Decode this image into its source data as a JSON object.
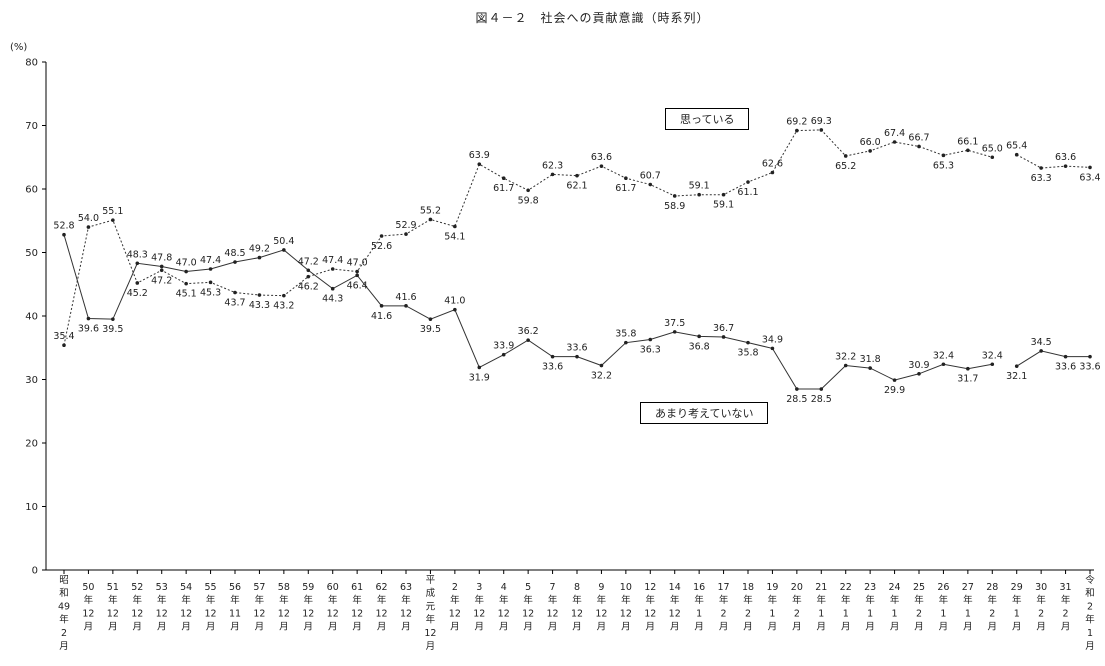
{
  "chart_data": {
    "type": "line",
    "title": "図４－２　社会への貢献意識（時系列）",
    "y_unit": "(%)",
    "ylim": [
      0,
      80
    ],
    "yticks": [
      0,
      10,
      20,
      30,
      40,
      50,
      60,
      70,
      80
    ],
    "grid": false,
    "categories": [
      [
        "昭",
        "和",
        "49",
        "年",
        "2",
        "月"
      ],
      [
        "50",
        "年",
        "12",
        "月"
      ],
      [
        "51",
        "年",
        "12",
        "月"
      ],
      [
        "52",
        "年",
        "12",
        "月"
      ],
      [
        "53",
        "年",
        "12",
        "月"
      ],
      [
        "54",
        "年",
        "12",
        "月"
      ],
      [
        "55",
        "年",
        "12",
        "月"
      ],
      [
        "56",
        "年",
        "11",
        "月"
      ],
      [
        "57",
        "年",
        "12",
        "月"
      ],
      [
        "58",
        "年",
        "12",
        "月"
      ],
      [
        "59",
        "年",
        "12",
        "月"
      ],
      [
        "60",
        "年",
        "12",
        "月"
      ],
      [
        "61",
        "年",
        "12",
        "月"
      ],
      [
        "62",
        "年",
        "12",
        "月"
      ],
      [
        "63",
        "年",
        "12",
        "月"
      ],
      [
        "平",
        "成",
        "元",
        "年",
        "12",
        "月"
      ],
      [
        "2",
        "年",
        "12",
        "月"
      ],
      [
        "3",
        "年",
        "12",
        "月"
      ],
      [
        "4",
        "年",
        "12",
        "月"
      ],
      [
        "5",
        "年",
        "12",
        "月"
      ],
      [
        "7",
        "年",
        "12",
        "月"
      ],
      [
        "8",
        "年",
        "12",
        "月"
      ],
      [
        "9",
        "年",
        "12",
        "月"
      ],
      [
        "10",
        "年",
        "12",
        "月"
      ],
      [
        "12",
        "年",
        "12",
        "月"
      ],
      [
        "14",
        "年",
        "12",
        "月"
      ],
      [
        "16",
        "年",
        "1",
        "月"
      ],
      [
        "17",
        "年",
        "2",
        "月"
      ],
      [
        "18",
        "年",
        "2",
        "月"
      ],
      [
        "19",
        "年",
        "1",
        "月"
      ],
      [
        "20",
        "年",
        "2",
        "月"
      ],
      [
        "21",
        "年",
        "1",
        "月"
      ],
      [
        "22",
        "年",
        "1",
        "月"
      ],
      [
        "23",
        "年",
        "1",
        "月"
      ],
      [
        "24",
        "年",
        "1",
        "月"
      ],
      [
        "25",
        "年",
        "2",
        "月"
      ],
      [
        "26",
        "年",
        "1",
        "月"
      ],
      [
        "27",
        "年",
        "1",
        "月"
      ],
      [
        "28",
        "年",
        "2",
        "月"
      ],
      [
        "29",
        "年",
        "1",
        "月"
      ],
      [
        "30",
        "年",
        "2",
        "月"
      ],
      [
        "31",
        "年",
        "2",
        "月"
      ],
      [
        "令",
        "和",
        "2",
        "年",
        "1",
        "月"
      ]
    ],
    "series": [
      {
        "name": "思っている",
        "style": "dotted",
        "values": [
          35.4,
          54.0,
          55.1,
          45.2,
          47.2,
          45.1,
          45.3,
          43.7,
          43.3,
          43.2,
          46.2,
          47.4,
          47.0,
          52.6,
          52.9,
          55.2,
          54.1,
          63.9,
          61.7,
          59.8,
          62.3,
          62.1,
          63.6,
          61.7,
          60.7,
          58.9,
          59.1,
          59.1,
          61.1,
          62.6,
          69.2,
          69.3,
          65.2,
          66.0,
          67.4,
          66.7,
          65.3,
          66.1,
          65.0,
          65.4,
          63.3,
          63.6,
          63.4
        ],
        "labels": [
          "35.4",
          "54.0",
          "55.1",
          "45.2",
          "47.2",
          "45.1",
          "45.3",
          "43.7",
          "43.3",
          "43.2",
          "46.2",
          "47.4",
          "47.0",
          "52.6",
          "52.9",
          "55.2",
          "54.1",
          "63.9",
          "61.7",
          "59.8",
          "62.3",
          "62.1",
          "63.6",
          "61.7",
          "60.7",
          "58.9",
          "59.1",
          "59.1",
          "61.1",
          "62.6",
          "69.2",
          "69.3",
          "65.2",
          "66.0",
          "67.4",
          "66.7",
          "65.3",
          "66.1",
          "65.0",
          "65.4",
          "63.3",
          "63.6",
          "63.4"
        ],
        "gap_after_index": 38
      },
      {
        "name": "あまり考えていない",
        "style": "solid",
        "values": [
          52.8,
          39.6,
          39.5,
          48.3,
          47.8,
          47.0,
          47.4,
          48.5,
          49.2,
          50.4,
          47.2,
          44.3,
          46.4,
          41.6,
          41.6,
          39.5,
          41.0,
          31.9,
          33.9,
          36.2,
          33.6,
          33.6,
          32.2,
          35.8,
          36.3,
          37.5,
          36.8,
          36.7,
          35.8,
          34.9,
          28.5,
          28.5,
          32.2,
          31.8,
          29.9,
          30.9,
          32.4,
          31.7,
          32.4,
          32.1,
          34.5,
          33.6,
          33.6
        ],
        "labels": [
          "52.8",
          "39.6",
          "39.5",
          "48.3",
          "47.8",
          "47.0",
          "47.4",
          "48.5",
          "49.2",
          "50.4",
          "47.2",
          "44.3",
          "46.4",
          "41.6",
          "41.6",
          "39.5",
          "41.0",
          "31.9",
          "33.9",
          "36.2",
          "33.6",
          "33.6",
          "32.2",
          "35.8",
          "36.3",
          "37.5",
          "36.8",
          "36.7",
          "35.8",
          "34.9",
          "28.5",
          "28.5",
          "32.2",
          "31.8",
          "29.9",
          "30.9",
          "32.4",
          "31.7",
          "32.4",
          "32.1",
          "34.5",
          "33.6",
          "33.6"
        ],
        "gap_after_index": 38
      }
    ],
    "legend": [
      {
        "text": "思っている",
        "placement": "inline-upper"
      },
      {
        "text": "あまり考えていない",
        "placement": "inline-lower"
      }
    ]
  }
}
